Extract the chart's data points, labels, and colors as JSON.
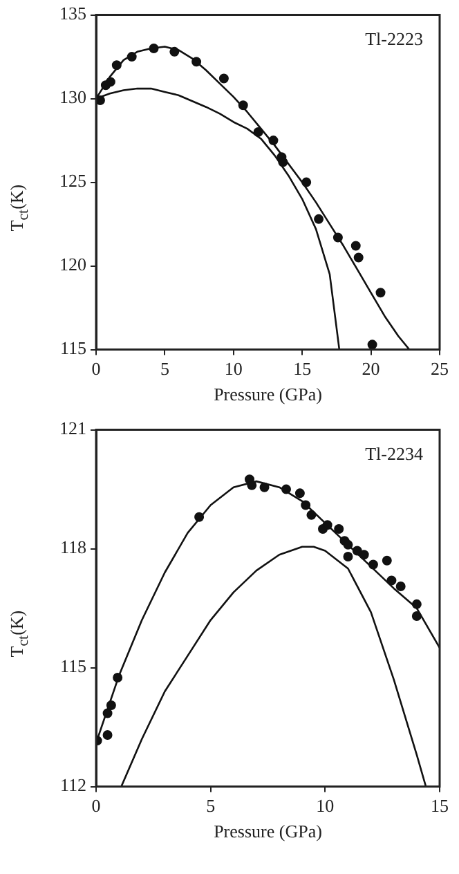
{
  "chart_data": [
    {
      "type": "scatter",
      "xlabel": "Pressure (GPa)",
      "ylabel": "T$_{ct}$(K)",
      "annotations": [
        "Tl-2223"
      ],
      "xlim": [
        0,
        25
      ],
      "xticks": [
        0,
        5,
        10,
        15,
        20,
        25
      ],
      "ylim": [
        115,
        135
      ],
      "yticks": [
        115,
        120,
        125,
        130,
        135
      ],
      "series": [
        {
          "type": "scatter",
          "color": "#111111",
          "marker": "circle",
          "x": [
            0.3,
            0.7,
            1.05,
            1.5,
            2.6,
            4.2,
            5.7,
            7.3,
            9.3,
            10.7,
            11.8,
            12.9,
            13.5,
            13.6,
            15.3,
            16.2,
            17.6,
            18.9,
            19.1,
            20.1,
            20.7
          ],
          "values": [
            129.9,
            130.8,
            131.0,
            132.0,
            132.5,
            133.0,
            132.8,
            132.2,
            131.2,
            129.6,
            128.0,
            127.5,
            126.5,
            126.2,
            125.0,
            122.8,
            121.7,
            121.2,
            120.5,
            115.3,
            118.4
          ]
        },
        {
          "type": "line",
          "color": "#111111",
          "marker": "none",
          "line_style": "solid",
          "x": [
            0,
            1,
            2,
            3,
            4,
            5,
            6,
            7,
            8,
            9,
            10,
            11,
            12,
            13,
            14,
            15,
            16,
            17,
            18,
            19,
            20,
            21,
            22,
            22.8
          ],
          "values": [
            130.0,
            131.3,
            132.3,
            132.8,
            133.0,
            133.1,
            132.9,
            132.4,
            131.7,
            130.9,
            130.1,
            129.2,
            128.2,
            127.2,
            126.1,
            125.0,
            123.8,
            122.5,
            121.2,
            119.8,
            118.4,
            117.0,
            115.8,
            115.0
          ]
        },
        {
          "type": "line",
          "color": "#111111",
          "marker": "none",
          "line_style": "solid",
          "x": [
            0,
            1,
            2,
            3,
            4,
            5,
            6,
            7,
            8,
            9,
            10,
            11,
            12,
            13,
            14,
            15,
            16,
            17,
            17.7
          ],
          "values": [
            130.0,
            130.3,
            130.5,
            130.6,
            130.6,
            130.4,
            130.2,
            129.85,
            129.5,
            129.1,
            128.6,
            128.2,
            127.6,
            126.6,
            125.4,
            124.0,
            122.2,
            119.5,
            115.0
          ]
        }
      ]
    },
    {
      "type": "scatter",
      "xlabel": "Pressure (GPa)",
      "ylabel": "T$_{ct}$(K)",
      "annotations": [
        "Tl-2234"
      ],
      "xlim": [
        0,
        15
      ],
      "xticks": [
        0,
        5,
        10,
        15
      ],
      "ylim": [
        112,
        121
      ],
      "yticks": [
        112,
        115,
        118,
        121
      ],
      "series": [
        {
          "type": "scatter",
          "color": "#111111",
          "marker": "circle",
          "x": [
            0.05,
            0.5,
            0.5,
            0.66,
            0.94,
            4.5,
            6.7,
            6.8,
            7.35,
            8.3,
            8.9,
            9.15,
            9.4,
            9.9,
            10.1,
            10.6,
            10.85,
            11.0,
            11.0,
            11.4,
            11.7,
            12.1,
            12.7,
            12.9,
            13.3,
            14.0,
            14.0
          ],
          "values": [
            113.16,
            113.3,
            113.85,
            114.05,
            114.75,
            118.8,
            119.75,
            119.6,
            119.55,
            119.5,
            119.4,
            119.1,
            118.85,
            118.5,
            118.6,
            118.5,
            118.2,
            118.1,
            117.8,
            117.95,
            117.85,
            117.6,
            117.7,
            117.2,
            117.05,
            116.6,
            116.3
          ]
        },
        {
          "type": "line",
          "color": "#111111",
          "marker": "none",
          "line_style": "solid",
          "x": [
            0,
            1,
            2,
            3,
            4,
            5,
            6,
            7,
            8,
            9,
            10,
            11,
            12,
            13,
            14,
            15
          ],
          "values": [
            113.1,
            114.8,
            116.2,
            117.4,
            118.4,
            119.1,
            119.55,
            119.7,
            119.55,
            119.2,
            118.65,
            118.1,
            117.55,
            117.0,
            116.5,
            115.5
          ]
        },
        {
          "type": "line",
          "color": "#111111",
          "marker": "none",
          "line_style": "solid",
          "x": [
            1.1,
            2,
            3,
            4,
            5,
            6,
            7,
            8,
            9,
            9.5,
            10,
            11,
            12,
            13,
            14,
            14.4
          ],
          "values": [
            112.0,
            113.2,
            114.4,
            115.3,
            116.2,
            116.9,
            117.45,
            117.85,
            118.05,
            118.05,
            117.95,
            117.5,
            116.4,
            114.7,
            112.8,
            112.0
          ]
        }
      ]
    }
  ]
}
